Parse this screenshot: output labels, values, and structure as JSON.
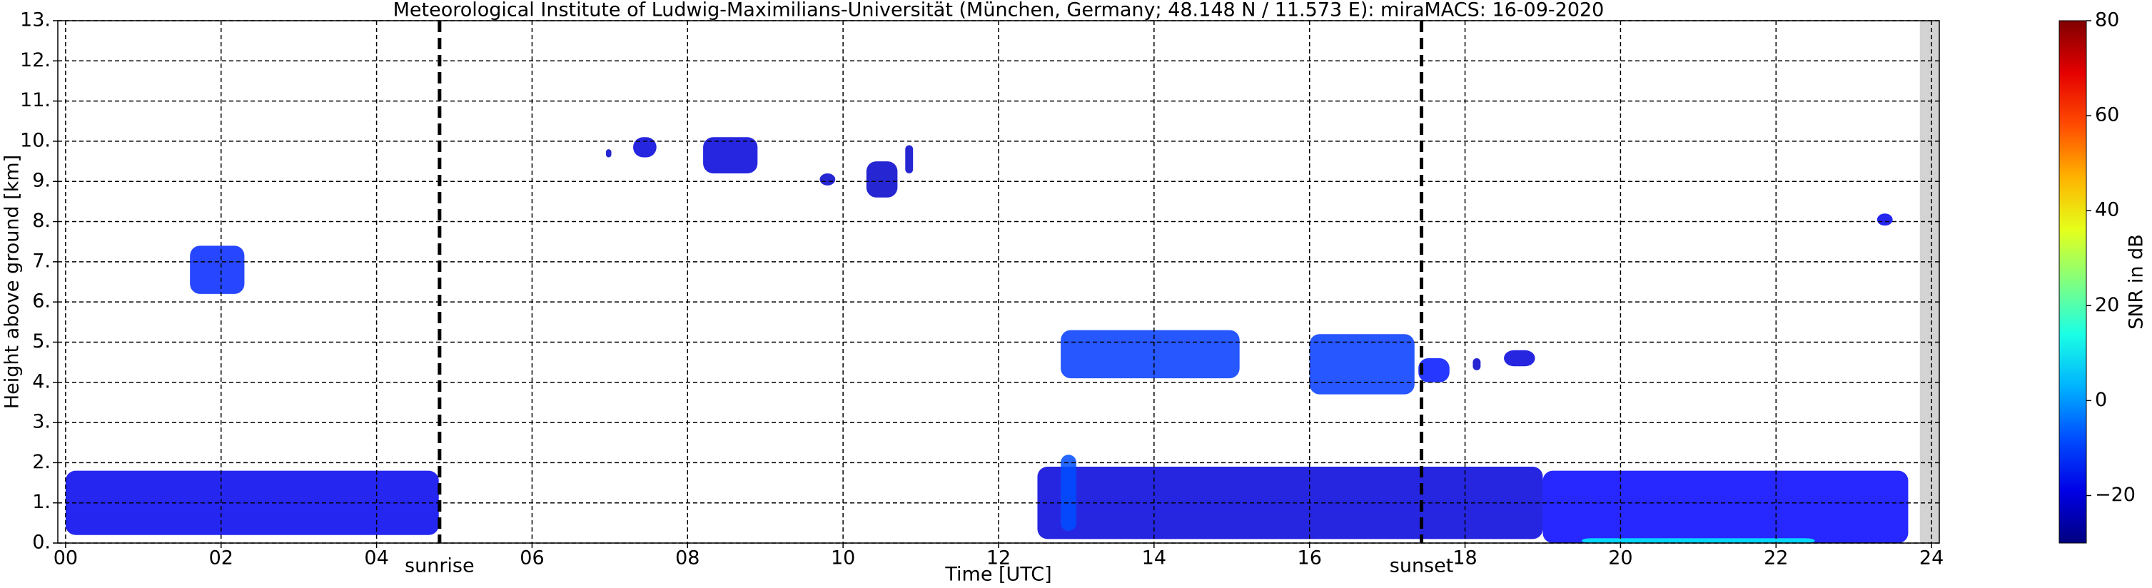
{
  "chart_data": {
    "type": "time-height",
    "title": "Meteorological Institute of Ludwig-Maximilians-Universität (München, Germany; 48.148 N / 11.573 E):    miraMACS: 16-09-2020",
    "x_label": "Time [UTC]",
    "y_label": "Height above ground [km]",
    "colorbar_label": "SNR in dB",
    "xlim": [
      -0.1,
      24.1
    ],
    "ylim": [
      0,
      13
    ],
    "clim": [
      -30,
      80
    ],
    "grid": true,
    "missing_data_start": 23.85,
    "xticks": [
      {
        "value": 0,
        "label": "00"
      },
      {
        "value": 2,
        "label": "02"
      },
      {
        "value": 4,
        "label": "04"
      },
      {
        "value": 6,
        "label": "06"
      },
      {
        "value": 8,
        "label": "08"
      },
      {
        "value": 10,
        "label": "10"
      },
      {
        "value": 12,
        "label": "12"
      },
      {
        "value": 14,
        "label": "14"
      },
      {
        "value": 16,
        "label": "16"
      },
      {
        "value": 18,
        "label": "18"
      },
      {
        "value": 20,
        "label": "20"
      },
      {
        "value": 22,
        "label": "22"
      },
      {
        "value": 24,
        "label": "24"
      }
    ],
    "yticks": [
      {
        "value": 0,
        "label": "0."
      },
      {
        "value": 1,
        "label": "1."
      },
      {
        "value": 2,
        "label": "2."
      },
      {
        "value": 3,
        "label": "3."
      },
      {
        "value": 4,
        "label": "4."
      },
      {
        "value": 5,
        "label": "5."
      },
      {
        "value": 6,
        "label": "6."
      },
      {
        "value": 7,
        "label": "7."
      },
      {
        "value": 8,
        "label": "8."
      },
      {
        "value": 9,
        "label": "9."
      },
      {
        "value": 10,
        "label": "10."
      },
      {
        "value": 11,
        "label": "11."
      },
      {
        "value": 12,
        "label": "12."
      },
      {
        "value": 13,
        "label": "13."
      }
    ],
    "cticks": [
      {
        "value": -20,
        "label": "−20"
      },
      0,
      20,
      40,
      60,
      80
    ],
    "annotations": [
      {
        "label": "sunrise",
        "x": 4.81
      },
      {
        "label": "sunset",
        "x": 17.44
      }
    ],
    "echoes": [
      {
        "start": 0.0,
        "end": 4.8,
        "bottom": 0.2,
        "top": 1.8,
        "snr": -18
      },
      {
        "start": 12.5,
        "end": 19.0,
        "bottom": 0.1,
        "top": 1.9,
        "snr": -20
      },
      {
        "start": 19.0,
        "end": 23.7,
        "bottom": 0.0,
        "top": 1.8,
        "snr": -16
      },
      {
        "start": 12.8,
        "end": 13.0,
        "bottom": 0.3,
        "top": 2.2,
        "snr": -8
      },
      {
        "start": 19.5,
        "end": 22.5,
        "bottom": 0.0,
        "top": 0.12,
        "snr": 10
      },
      {
        "start": 1.6,
        "end": 2.3,
        "bottom": 6.2,
        "top": 7.4,
        "snr": -12
      },
      {
        "start": 6.95,
        "end": 7.02,
        "bottom": 9.6,
        "top": 9.8,
        "snr": -22
      },
      {
        "start": 7.3,
        "end": 7.6,
        "bottom": 9.6,
        "top": 10.1,
        "snr": -20
      },
      {
        "start": 8.2,
        "end": 8.9,
        "bottom": 9.2,
        "top": 10.1,
        "snr": -20
      },
      {
        "start": 9.7,
        "end": 9.9,
        "bottom": 8.9,
        "top": 9.2,
        "snr": -22
      },
      {
        "start": 10.3,
        "end": 10.7,
        "bottom": 8.6,
        "top": 9.5,
        "snr": -22
      },
      {
        "start": 10.8,
        "end": 10.9,
        "bottom": 9.2,
        "top": 9.9,
        "snr": -22
      },
      {
        "start": 12.8,
        "end": 15.1,
        "bottom": 4.1,
        "top": 5.3,
        "snr": -10
      },
      {
        "start": 16.0,
        "end": 17.35,
        "bottom": 3.7,
        "top": 5.2,
        "snr": -10
      },
      {
        "start": 17.4,
        "end": 17.8,
        "bottom": 4.0,
        "top": 4.6,
        "snr": -14
      },
      {
        "start": 18.1,
        "end": 18.2,
        "bottom": 4.3,
        "top": 4.6,
        "snr": -22
      },
      {
        "start": 18.5,
        "end": 18.9,
        "bottom": 4.4,
        "top": 4.8,
        "snr": -20
      },
      {
        "start": 23.3,
        "end": 23.5,
        "bottom": 7.9,
        "top": 8.2,
        "snr": -18
      }
    ]
  }
}
